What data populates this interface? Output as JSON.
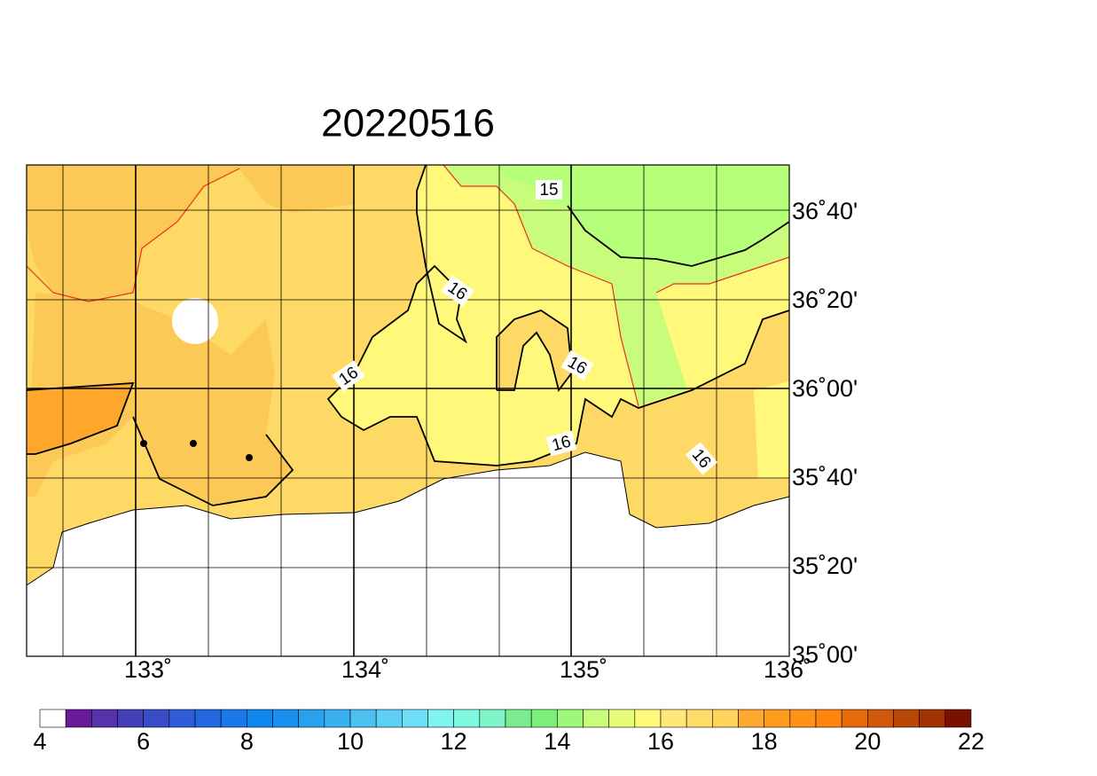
{
  "title": "20220516",
  "lon_labels": [
    "133˚",
    "134˚",
    "135˚",
    "136˚"
  ],
  "lat_labels": [
    "36˚40'",
    "36˚20'",
    "36˚00'",
    "35˚40'",
    "35˚20'",
    "35˚00'"
  ],
  "contour_labels": [
    15,
    16,
    16,
    16,
    16,
    16
  ],
  "colorbar": {
    "labels": [
      4,
      6,
      8,
      10,
      12,
      14,
      16,
      18,
      20,
      22
    ],
    "colors": [
      "#ffffff",
      "#6a1b9a",
      "#5533aa",
      "#4440b8",
      "#3a4cc8",
      "#2f5cd8",
      "#2468e0",
      "#1a78e8",
      "#0e88f0",
      "#1890f0",
      "#2aa0f0",
      "#3ab0f0",
      "#4cc0f0",
      "#5ed0f5",
      "#70e0f8",
      "#7ef5f0",
      "#7ef8e0",
      "#7ef4c8",
      "#7aec8e",
      "#7af07a",
      "#a0f87a",
      "#c8fc7a",
      "#e8fc7a",
      "#fffa7a",
      "#ffe77a",
      "#ffdd6a",
      "#ffd45a",
      "#ffa830",
      "#ff9c20",
      "#ff9018",
      "#ff8410",
      "#e66a0a",
      "#d05808",
      "#b84806",
      "#a03204",
      "#7a1000"
    ]
  }
}
